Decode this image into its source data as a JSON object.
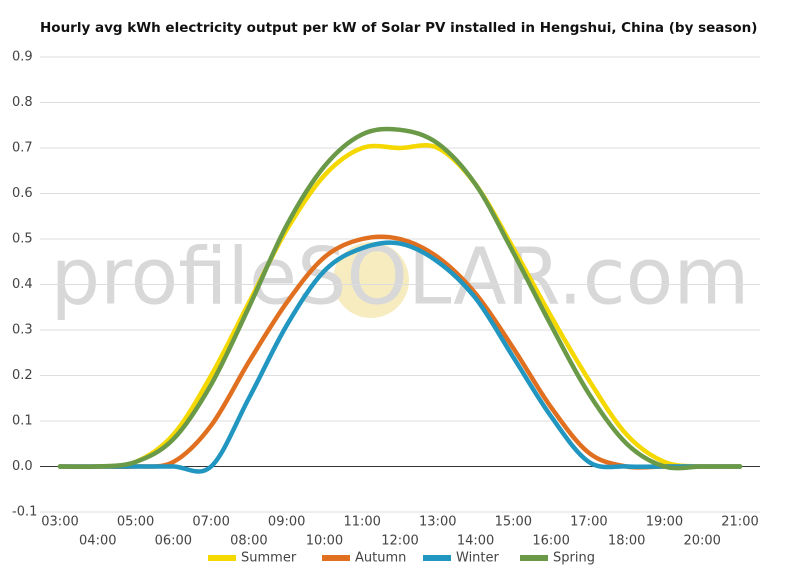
{
  "chart_data": {
    "type": "line",
    "title": "Hourly avg kWh electricity output per kW of Solar PV installed in Hengshui, China (by season)",
    "watermark": "profileSOLAR.com",
    "categories": [
      "03:00",
      "04:00",
      "05:00",
      "06:00",
      "07:00",
      "08:00",
      "09:00",
      "10:00",
      "11:00",
      "12:00",
      "13:00",
      "14:00",
      "15:00",
      "16:00",
      "17:00",
      "18:00",
      "19:00",
      "20:00",
      "21:00"
    ],
    "series": [
      {
        "name": "Summer",
        "color": "#f5d800",
        "values": [
          0,
          0,
          0.01,
          0.07,
          0.2,
          0.36,
          0.52,
          0.64,
          0.7,
          0.7,
          0.7,
          0.62,
          0.48,
          0.33,
          0.19,
          0.07,
          0.01,
          0,
          0
        ]
      },
      {
        "name": "Autumn",
        "color": "#e07020",
        "values": [
          0,
          0,
          0,
          0.01,
          0.09,
          0.23,
          0.36,
          0.46,
          0.5,
          0.5,
          0.46,
          0.38,
          0.26,
          0.13,
          0.03,
          0,
          0,
          0,
          0
        ]
      },
      {
        "name": "Winter",
        "color": "#2196c0",
        "values": [
          0,
          0,
          0,
          0,
          0,
          0.15,
          0.31,
          0.43,
          0.48,
          0.49,
          0.45,
          0.37,
          0.24,
          0.11,
          0.01,
          0,
          0,
          0,
          0
        ]
      },
      {
        "name": "Spring",
        "color": "#6a9a48",
        "values": [
          0,
          0,
          0.01,
          0.06,
          0.18,
          0.35,
          0.53,
          0.66,
          0.73,
          0.74,
          0.71,
          0.62,
          0.47,
          0.31,
          0.16,
          0.05,
          0,
          0,
          0
        ]
      }
    ],
    "ylim": [
      -0.1,
      0.9
    ],
    "yticks": [
      -0.1,
      {
        "value": 0,
        "label": "0.0"
      },
      0.1,
      0.2,
      0.3,
      0.4,
      0.5,
      0.6,
      0.7,
      0.8,
      0.9
    ],
    "grid": true,
    "legend": "bottom"
  }
}
